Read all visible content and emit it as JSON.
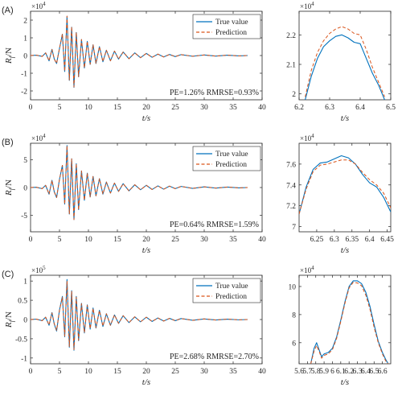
{
  "colors": {
    "true": "#0072BD",
    "pred": "#D95319",
    "axis": "#262626"
  },
  "legend": {
    "true_label": "True value",
    "pred_label": "Prediction"
  },
  "chart_data": [
    {
      "panel": "(A)",
      "type": "line",
      "ylabel": "R_f/N",
      "xlabel": "t/s",
      "multiplier": "×10^4",
      "xlim": [
        0,
        40
      ],
      "ylim": [
        -2.5,
        2.5
      ],
      "xticks": [
        0,
        5,
        10,
        15,
        20,
        25,
        30,
        35,
        40
      ],
      "yticks": [
        -2,
        -1,
        0,
        1,
        2
      ],
      "annotation": "PE=1.26%  RMRSE=0.93%",
      "series": [
        {
          "name": "True value",
          "x": [
            0,
            1,
            2,
            2.6,
            3.2,
            3.7,
            4.1,
            4.5,
            5.0,
            5.5,
            5.9,
            6.3,
            6.7,
            7.1,
            7.5,
            7.9,
            8.3,
            8.8,
            9.3,
            9.8,
            10.3,
            10.8,
            11.3,
            11.9,
            12.5,
            13.1,
            13.8,
            14.5,
            15.2,
            16,
            17,
            18,
            19,
            20,
            21,
            22,
            23,
            24,
            25,
            26,
            28,
            30,
            32,
            34,
            36,
            37.5
          ],
          "y": [
            0,
            0.02,
            -0.05,
            0.15,
            -0.3,
            0.35,
            -0.2,
            -0.45,
            0.4,
            1.2,
            -0.9,
            2.2,
            -1.4,
            1.6,
            -1.8,
            1.3,
            -1.2,
            0.9,
            -0.7,
            0.8,
            -0.5,
            0.6,
            -0.45,
            0.5,
            -0.35,
            0.3,
            -0.3,
            0.25,
            -0.2,
            0.2,
            -0.18,
            0.15,
            -0.12,
            0.12,
            -0.1,
            0.08,
            -0.08,
            0.06,
            -0.06,
            0.05,
            -0.04,
            0.03,
            -0.03,
            0.02,
            -0.02,
            0
          ]
        },
        {
          "name": "Prediction",
          "x": [
            0,
            1,
            2,
            2.6,
            3.2,
            3.7,
            4.1,
            4.5,
            5.0,
            5.5,
            5.9,
            6.3,
            6.7,
            7.1,
            7.5,
            7.9,
            8.3,
            8.8,
            9.3,
            9.8,
            10.3,
            10.8,
            11.3,
            11.9,
            12.5,
            13.1,
            13.8,
            14.5,
            15.2,
            16,
            17,
            18,
            19,
            20,
            21,
            22,
            23,
            24,
            25,
            26,
            28,
            30,
            32,
            34,
            36,
            37.5
          ],
          "y": [
            0,
            0.02,
            -0.05,
            0.15,
            -0.3,
            0.34,
            -0.2,
            -0.44,
            0.41,
            1.22,
            -0.88,
            2.23,
            -1.38,
            1.62,
            -1.78,
            1.31,
            -1.19,
            0.91,
            -0.69,
            0.81,
            -0.49,
            0.61,
            -0.44,
            0.5,
            -0.34,
            0.3,
            -0.3,
            0.25,
            -0.2,
            0.2,
            -0.18,
            0.15,
            -0.12,
            0.12,
            -0.1,
            0.08,
            -0.08,
            0.06,
            -0.06,
            0.05,
            -0.04,
            0.03,
            -0.03,
            0.02,
            -0.02,
            0
          ]
        }
      ]
    },
    {
      "panel": "(A) zoom",
      "type": "line",
      "xlabel": "t/s",
      "multiplier": "×10^4",
      "xlim": [
        6.2,
        6.5
      ],
      "ylim": [
        1.98,
        2.28
      ],
      "xticks": [
        6.2,
        6.3,
        6.4,
        6.5
      ],
      "xtick_labels": [
        "6.2",
        "6.3",
        "6.4",
        "6.5"
      ],
      "yticks": [
        2.0,
        2.1,
        2.2
      ],
      "ytick_labels": [
        "2",
        "2.1",
        "2.2"
      ],
      "series": [
        {
          "name": "True value",
          "x": [
            6.22,
            6.24,
            6.26,
            6.28,
            6.3,
            6.32,
            6.34,
            6.36,
            6.38,
            6.4,
            6.42,
            6.44,
            6.46,
            6.48
          ],
          "y": [
            1.98,
            2.06,
            2.12,
            2.16,
            2.18,
            2.195,
            2.2,
            2.19,
            2.175,
            2.17,
            2.12,
            2.07,
            2.03,
            1.98
          ]
        },
        {
          "name": "Prediction",
          "x": [
            6.22,
            6.24,
            6.26,
            6.28,
            6.3,
            6.32,
            6.34,
            6.36,
            6.38,
            6.4,
            6.42,
            6.44,
            6.46,
            6.48
          ],
          "y": [
            1.99,
            2.08,
            2.14,
            2.18,
            2.205,
            2.22,
            2.228,
            2.22,
            2.205,
            2.2,
            2.15,
            2.09,
            2.04,
            1.99
          ]
        }
      ]
    },
    {
      "panel": "(B)",
      "type": "line",
      "ylabel": "R_f/N",
      "xlabel": "t/s",
      "multiplier": "×10^4",
      "xlim": [
        0,
        40
      ],
      "ylim": [
        -8,
        8
      ],
      "xticks": [
        0,
        5,
        10,
        15,
        20,
        25,
        30,
        35,
        40
      ],
      "yticks": [
        -5,
        0,
        5
      ],
      "annotation": "PE=0.64%  RMRSE=1.59%",
      "series": [
        {
          "name": "True value",
          "x": [
            0,
            1,
            2,
            2.6,
            3.2,
            3.7,
            4.1,
            4.5,
            5.0,
            5.5,
            5.9,
            6.3,
            6.7,
            7.1,
            7.5,
            7.9,
            8.3,
            8.8,
            9.3,
            9.8,
            10.3,
            10.8,
            11.3,
            11.9,
            12.5,
            13.1,
            13.8,
            14.5,
            15.2,
            16,
            17,
            18,
            19,
            20,
            21,
            22,
            23,
            24,
            25,
            26,
            28,
            30,
            32,
            34,
            36,
            37.5
          ],
          "y": [
            0,
            0.05,
            -0.2,
            0.4,
            -1.2,
            1.3,
            -0.8,
            -1.8,
            1.5,
            4.0,
            -3.0,
            7.6,
            -4.8,
            5.2,
            -5.8,
            4.3,
            -4.0,
            3.0,
            -2.3,
            2.6,
            -1.7,
            2.0,
            -1.5,
            1.6,
            -1.2,
            1.0,
            -1.0,
            0.8,
            -0.7,
            0.7,
            -0.6,
            0.5,
            -0.4,
            0.4,
            -0.35,
            0.3,
            -0.3,
            0.25,
            -0.2,
            0.2,
            -0.15,
            0.12,
            -0.1,
            0.08,
            -0.06,
            0
          ]
        },
        {
          "name": "Prediction",
          "x": [
            0,
            1,
            2,
            2.6,
            3.2,
            3.7,
            4.1,
            4.5,
            5.0,
            5.5,
            5.9,
            6.3,
            6.7,
            7.1,
            7.5,
            7.9,
            8.3,
            8.8,
            9.3,
            9.8,
            10.3,
            10.8,
            11.3,
            11.9,
            12.5,
            13.1,
            13.8,
            14.5,
            15.2,
            16,
            17,
            18,
            19,
            20,
            21,
            22,
            23,
            24,
            25,
            26,
            28,
            30,
            32,
            34,
            36,
            37.5
          ],
          "y": [
            0,
            0.05,
            -0.2,
            0.4,
            -1.2,
            1.3,
            -0.8,
            -1.8,
            1.5,
            4.0,
            -3.0,
            7.55,
            -4.8,
            5.2,
            -5.8,
            4.3,
            -4.0,
            3.0,
            -2.3,
            2.6,
            -1.7,
            2.0,
            -1.5,
            1.6,
            -1.2,
            1.0,
            -1.0,
            0.8,
            -0.7,
            0.7,
            -0.6,
            0.5,
            -0.4,
            0.4,
            -0.35,
            0.3,
            -0.3,
            0.25,
            -0.2,
            0.2,
            -0.15,
            0.12,
            -0.1,
            0.08,
            -0.06,
            0
          ]
        }
      ]
    },
    {
      "panel": "(B) zoom",
      "type": "line",
      "xlabel": "t/s",
      "multiplier": "×10^4",
      "xlim": [
        6.2,
        6.46
      ],
      "ylim": [
        6.95,
        7.8
      ],
      "xticks": [
        6.25,
        6.3,
        6.35,
        6.4,
        6.45
      ],
      "xtick_labels": [
        "6.25",
        "6.3",
        "6.35",
        "6.4",
        "6.45"
      ],
      "yticks": [
        7.0,
        7.2,
        7.4,
        7.6
      ],
      "ytick_labels": [
        "7",
        "7.2",
        "7.4",
        "7.6"
      ],
      "series": [
        {
          "name": "True value",
          "x": [
            6.2,
            6.22,
            6.24,
            6.26,
            6.28,
            6.3,
            6.32,
            6.34,
            6.36,
            6.38,
            6.4,
            6.42,
            6.44,
            6.46
          ],
          "y": [
            7.12,
            7.38,
            7.55,
            7.61,
            7.62,
            7.65,
            7.68,
            7.66,
            7.6,
            7.5,
            7.42,
            7.38,
            7.28,
            7.14
          ]
        },
        {
          "name": "Prediction",
          "x": [
            6.2,
            6.22,
            6.24,
            6.26,
            6.28,
            6.3,
            6.32,
            6.34,
            6.36,
            6.38,
            6.4,
            6.42,
            6.44,
            6.46
          ],
          "y": [
            7.12,
            7.36,
            7.53,
            7.59,
            7.6,
            7.62,
            7.64,
            7.64,
            7.6,
            7.52,
            7.45,
            7.4,
            7.32,
            7.18
          ]
        }
      ]
    },
    {
      "panel": "(C)",
      "type": "line",
      "ylabel": "R_f/N",
      "xlabel": "t/s",
      "multiplier": "×10^5",
      "xlim": [
        0,
        40
      ],
      "ylim": [
        -1.15,
        1.15
      ],
      "xticks": [
        0,
        5,
        10,
        15,
        20,
        25,
        30,
        35,
        40
      ],
      "yticks": [
        -1,
        -0.5,
        0,
        0.5,
        1
      ],
      "ytick_labels": [
        "-1",
        "-0.5",
        "0",
        "0.5",
        "1"
      ],
      "annotation": "PE=2.68%  RMRSE=2.70%",
      "series": [
        {
          "name": "True value",
          "x": [
            0,
            1,
            2,
            2.6,
            3.2,
            3.7,
            4.1,
            4.5,
            5.0,
            5.5,
            5.9,
            6.3,
            6.7,
            7.1,
            7.5,
            7.9,
            8.3,
            8.8,
            9.3,
            9.8,
            10.3,
            10.8,
            11.3,
            11.9,
            12.5,
            13.1,
            13.8,
            14.5,
            15.2,
            16,
            17,
            18,
            19,
            20,
            21,
            22,
            23,
            24,
            25,
            26,
            28,
            30,
            32,
            34,
            36,
            37.5
          ],
          "y": [
            0,
            0.01,
            -0.03,
            0.06,
            -0.15,
            0.18,
            -0.12,
            -0.3,
            0.25,
            0.6,
            -0.45,
            1.04,
            -0.72,
            0.75,
            -0.8,
            0.6,
            -0.55,
            0.42,
            -0.35,
            0.38,
            -0.25,
            0.3,
            -0.22,
            0.24,
            -0.18,
            0.15,
            -0.15,
            0.12,
            -0.1,
            0.1,
            -0.08,
            0.07,
            -0.06,
            0.06,
            -0.05,
            0.04,
            -0.04,
            0.03,
            -0.03,
            0.025,
            -0.02,
            0.015,
            -0.012,
            0.01,
            -0.008,
            0
          ]
        },
        {
          "name": "Prediction",
          "x": [
            0,
            1,
            2,
            2.6,
            3.2,
            3.7,
            4.1,
            4.5,
            5.0,
            5.5,
            5.9,
            6.3,
            6.7,
            7.1,
            7.5,
            7.9,
            8.3,
            8.8,
            9.3,
            9.8,
            10.3,
            10.8,
            11.3,
            11.9,
            12.5,
            13.1,
            13.8,
            14.5,
            15.2,
            16,
            17,
            18,
            19,
            20,
            21,
            22,
            23,
            24,
            25,
            26,
            28,
            30,
            32,
            34,
            36,
            37.5
          ],
          "y": [
            0,
            0.01,
            -0.03,
            0.06,
            -0.14,
            0.17,
            -0.11,
            -0.28,
            0.24,
            0.58,
            -0.43,
            1.0,
            -0.7,
            0.73,
            -0.78,
            0.58,
            -0.54,
            0.41,
            -0.34,
            0.37,
            -0.24,
            0.29,
            -0.21,
            0.23,
            -0.17,
            0.15,
            -0.15,
            0.12,
            -0.1,
            0.1,
            -0.08,
            0.07,
            -0.06,
            0.06,
            -0.05,
            0.04,
            -0.04,
            0.03,
            -0.03,
            0.025,
            -0.02,
            0.015,
            -0.012,
            0.01,
            -0.008,
            0
          ]
        }
      ]
    },
    {
      "panel": "(C) zoom",
      "type": "line",
      "xlabel": "t/s",
      "multiplier": "×10^4",
      "xlim": [
        5.6,
        6.7
      ],
      "ylim": [
        4.5,
        10.8
      ],
      "xticks": [
        5.6,
        5.7,
        5.8,
        5.9,
        6.0,
        6.1,
        6.2,
        6.3,
        6.4,
        6.5,
        6.6
      ],
      "xtick_labels": [
        "5.6",
        "5.7",
        "5.8",
        "5.9",
        "6",
        "6.1",
        "6.2",
        "6.3",
        "6.4",
        "6.5",
        "6.6"
      ],
      "yticks": [
        6,
        8,
        10
      ],
      "series": [
        {
          "name": "True value",
          "x": [
            5.74,
            5.78,
            5.81,
            5.84,
            5.87,
            5.9,
            5.95,
            6.0,
            6.05,
            6.1,
            6.15,
            6.2,
            6.25,
            6.3,
            6.35,
            6.4,
            6.45,
            6.5,
            6.55,
            6.6,
            6.64,
            6.67
          ],
          "y": [
            4.5,
            5.6,
            6.0,
            5.5,
            5.0,
            5.2,
            5.3,
            5.6,
            6.4,
            7.6,
            8.9,
            10.0,
            10.4,
            10.4,
            10.2,
            9.6,
            8.6,
            7.3,
            6.1,
            5.3,
            4.8,
            4.5
          ]
        },
        {
          "name": "Prediction",
          "x": [
            5.74,
            5.78,
            5.81,
            5.84,
            5.87,
            5.9,
            5.95,
            6.0,
            6.05,
            6.1,
            6.15,
            6.2,
            6.25,
            6.3,
            6.35,
            6.4,
            6.45,
            6.5,
            6.55,
            6.6,
            6.64,
            6.67
          ],
          "y": [
            4.5,
            5.4,
            5.8,
            5.4,
            4.9,
            5.1,
            5.2,
            5.5,
            6.3,
            7.5,
            8.8,
            9.9,
            10.3,
            10.25,
            10.05,
            9.4,
            8.4,
            7.1,
            6.0,
            5.2,
            4.7,
            4.5
          ]
        }
      ]
    }
  ]
}
